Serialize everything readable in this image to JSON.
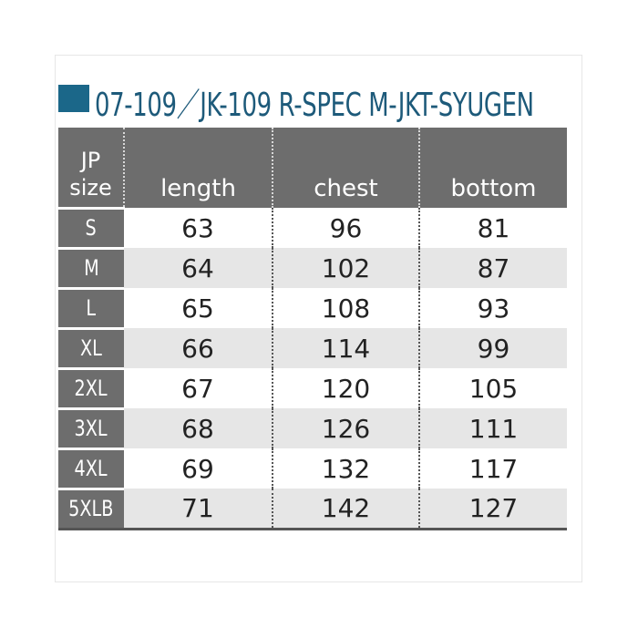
{
  "title": "07-109／JK-109 R-SPEC M-JKT-SYUGEN",
  "accent_color": "#1b6789",
  "table": {
    "headers": {
      "size_line1": "JP",
      "size_line2": "size",
      "length": "length",
      "chest": "chest",
      "bottom": "bottom"
    },
    "rows": [
      {
        "size": "S",
        "length": "63",
        "chest": "96",
        "bottom": "81"
      },
      {
        "size": "M",
        "length": "64",
        "chest": "102",
        "bottom": "87"
      },
      {
        "size": "L",
        "length": "65",
        "chest": "108",
        "bottom": "93"
      },
      {
        "size": "XL",
        "length": "66",
        "chest": "114",
        "bottom": "99"
      },
      {
        "size": "2XL",
        "length": "67",
        "chest": "120",
        "bottom": "105"
      },
      {
        "size": "3XL",
        "length": "68",
        "chest": "126",
        "bottom": "111"
      },
      {
        "size": "4XL",
        "length": "69",
        "chest": "132",
        "bottom": "117"
      },
      {
        "size": "5XLB",
        "length": "71",
        "chest": "142",
        "bottom": "127"
      }
    ]
  }
}
